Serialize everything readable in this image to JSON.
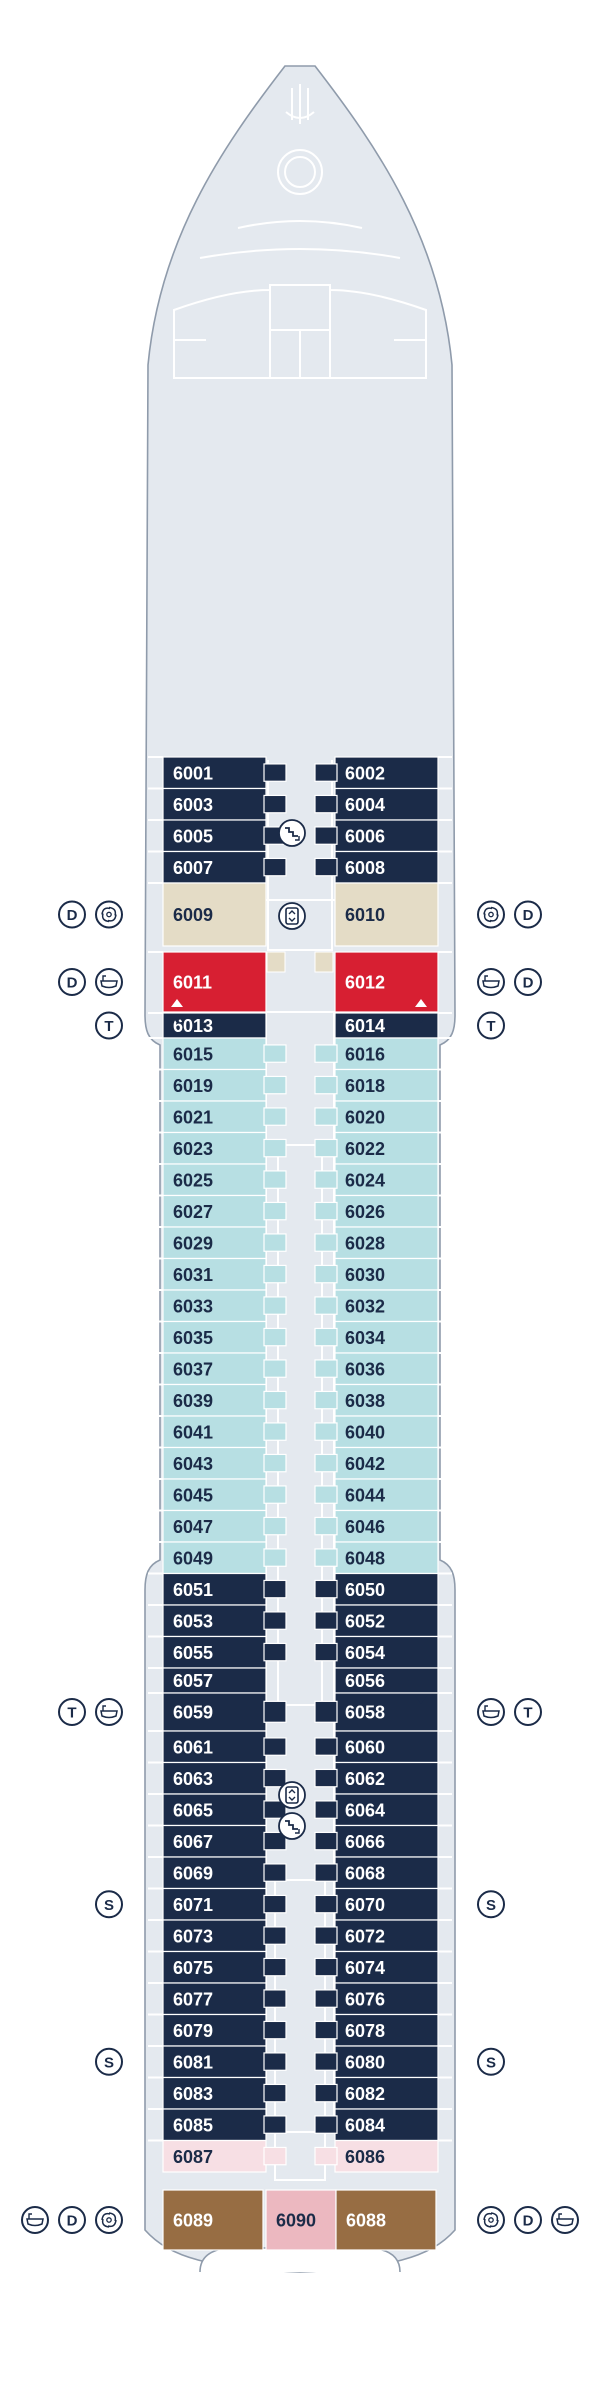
{
  "deck": {
    "name": "",
    "colors": {
      "hull": "#e4e9ef",
      "outline": "#8f9bab",
      "navy": "#1b2b48",
      "light_blue": "#b7dfe3",
      "beige": "#e4dcc6",
      "red": "#d71f32",
      "pink": "#f7dfe4",
      "brown": "#976d43",
      "rose": "#ecb8c0",
      "inner_lines": "#ffffff"
    }
  },
  "cabins": [
    {
      "id": "6001",
      "label": "6001",
      "category": "navy"
    },
    {
      "id": "6002",
      "label": "6002",
      "category": "navy"
    },
    {
      "id": "6003",
      "label": "6003",
      "category": "navy"
    },
    {
      "id": "6004",
      "label": "6004",
      "category": "navy"
    },
    {
      "id": "6005",
      "label": "6005",
      "category": "navy"
    },
    {
      "id": "6006",
      "label": "6006",
      "category": "navy"
    },
    {
      "id": "6007",
      "label": "6007",
      "category": "navy"
    },
    {
      "id": "6008",
      "label": "6008",
      "category": "navy"
    },
    {
      "id": "6009",
      "label": "6009",
      "category": "beige"
    },
    {
      "id": "6010",
      "label": "6010",
      "category": "beige"
    },
    {
      "id": "6011",
      "label": "6011",
      "category": "red"
    },
    {
      "id": "6012",
      "label": "6012",
      "category": "red"
    },
    {
      "id": "6013",
      "label": "6013",
      "category": "navy"
    },
    {
      "id": "6014",
      "label": "6014",
      "category": "navy"
    },
    {
      "id": "6015",
      "label": "6015",
      "category": "light_blue"
    },
    {
      "id": "6016",
      "label": "6016",
      "category": "light_blue"
    },
    {
      "id": "6019",
      "label": "6019",
      "category": "light_blue"
    },
    {
      "id": "6018",
      "label": "6018",
      "category": "light_blue"
    },
    {
      "id": "6021",
      "label": "6021",
      "category": "light_blue"
    },
    {
      "id": "6020",
      "label": "6020",
      "category": "light_blue"
    },
    {
      "id": "6023",
      "label": "6023",
      "category": "light_blue"
    },
    {
      "id": "6022",
      "label": "6022",
      "category": "light_blue"
    },
    {
      "id": "6025",
      "label": "6025",
      "category": "light_blue"
    },
    {
      "id": "6024",
      "label": "6024",
      "category": "light_blue"
    },
    {
      "id": "6027",
      "label": "6027",
      "category": "light_blue"
    },
    {
      "id": "6026",
      "label": "6026",
      "category": "light_blue"
    },
    {
      "id": "6029",
      "label": "6029",
      "category": "light_blue"
    },
    {
      "id": "6028",
      "label": "6028",
      "category": "light_blue"
    },
    {
      "id": "6031",
      "label": "6031",
      "category": "light_blue"
    },
    {
      "id": "6030",
      "label": "6030",
      "category": "light_blue"
    },
    {
      "id": "6033",
      "label": "6033",
      "category": "light_blue"
    },
    {
      "id": "6032",
      "label": "6032",
      "category": "light_blue"
    },
    {
      "id": "6035",
      "label": "6035",
      "category": "light_blue"
    },
    {
      "id": "6034",
      "label": "6034",
      "category": "light_blue"
    },
    {
      "id": "6037",
      "label": "6037",
      "category": "light_blue"
    },
    {
      "id": "6036",
      "label": "6036",
      "category": "light_blue"
    },
    {
      "id": "6039",
      "label": "6039",
      "category": "light_blue"
    },
    {
      "id": "6038",
      "label": "6038",
      "category": "light_blue"
    },
    {
      "id": "6041",
      "label": "6041",
      "category": "light_blue"
    },
    {
      "id": "6040",
      "label": "6040",
      "category": "light_blue"
    },
    {
      "id": "6043",
      "label": "6043",
      "category": "light_blue"
    },
    {
      "id": "6042",
      "label": "6042",
      "category": "light_blue"
    },
    {
      "id": "6045",
      "label": "6045",
      "category": "light_blue"
    },
    {
      "id": "6044",
      "label": "6044",
      "category": "light_blue"
    },
    {
      "id": "6047",
      "label": "6047",
      "category": "light_blue"
    },
    {
      "id": "6046",
      "label": "6046",
      "category": "light_blue"
    },
    {
      "id": "6049",
      "label": "6049",
      "category": "light_blue"
    },
    {
      "id": "6048",
      "label": "6048",
      "category": "light_blue"
    },
    {
      "id": "6051",
      "label": "6051",
      "category": "navy"
    },
    {
      "id": "6050",
      "label": "6050",
      "category": "navy"
    },
    {
      "id": "6053",
      "label": "6053",
      "category": "navy"
    },
    {
      "id": "6052",
      "label": "6052",
      "category": "navy"
    },
    {
      "id": "6055",
      "label": "6055",
      "category": "navy"
    },
    {
      "id": "6054",
      "label": "6054",
      "category": "navy"
    },
    {
      "id": "6057",
      "label": "6057",
      "category": "navy"
    },
    {
      "id": "6056",
      "label": "6056",
      "category": "navy"
    },
    {
      "id": "6059",
      "label": "6059",
      "category": "navy"
    },
    {
      "id": "6058",
      "label": "6058",
      "category": "navy"
    },
    {
      "id": "6061",
      "label": "6061",
      "category": "navy"
    },
    {
      "id": "6060",
      "label": "6060",
      "category": "navy"
    },
    {
      "id": "6063",
      "label": "6063",
      "category": "navy"
    },
    {
      "id": "6062",
      "label": "6062",
      "category": "navy"
    },
    {
      "id": "6065",
      "label": "6065",
      "category": "navy"
    },
    {
      "id": "6064",
      "label": "6064",
      "category": "navy"
    },
    {
      "id": "6067",
      "label": "6067",
      "category": "navy"
    },
    {
      "id": "6066",
      "label": "6066",
      "category": "navy"
    },
    {
      "id": "6069",
      "label": "6069",
      "category": "navy"
    },
    {
      "id": "6068",
      "label": "6068",
      "category": "navy"
    },
    {
      "id": "6071",
      "label": "6071",
      "category": "navy"
    },
    {
      "id": "6070",
      "label": "6070",
      "category": "navy"
    },
    {
      "id": "6073",
      "label": "6073",
      "category": "navy"
    },
    {
      "id": "6072",
      "label": "6072",
      "category": "navy"
    },
    {
      "id": "6075",
      "label": "6075",
      "category": "navy"
    },
    {
      "id": "6074",
      "label": "6074",
      "category": "navy"
    },
    {
      "id": "6077",
      "label": "6077",
      "category": "navy"
    },
    {
      "id": "6076",
      "label": "6076",
      "category": "navy"
    },
    {
      "id": "6079",
      "label": "6079",
      "category": "navy"
    },
    {
      "id": "6078",
      "label": "6078",
      "category": "navy"
    },
    {
      "id": "6081",
      "label": "6081",
      "category": "navy"
    },
    {
      "id": "6080",
      "label": "6080",
      "category": "navy"
    },
    {
      "id": "6083",
      "label": "6083",
      "category": "navy"
    },
    {
      "id": "6082",
      "label": "6082",
      "category": "navy"
    },
    {
      "id": "6085",
      "label": "6085",
      "category": "navy"
    },
    {
      "id": "6084",
      "label": "6084",
      "category": "navy"
    },
    {
      "id": "6087",
      "label": "6087",
      "category": "pink"
    },
    {
      "id": "6086",
      "label": "6086",
      "category": "pink"
    },
    {
      "id": "6089",
      "label": "6089",
      "category": "brown"
    },
    {
      "id": "6090",
      "label": "6090",
      "category": "rose"
    },
    {
      "id": "6088",
      "label": "6088",
      "category": "brown"
    }
  ],
  "symbols": [
    {
      "cabin": "6009",
      "side": "left",
      "icons": [
        "D",
        "swirl"
      ]
    },
    {
      "cabin": "6010",
      "side": "right",
      "icons": [
        "swirl",
        "D"
      ]
    },
    {
      "cabin": "6011",
      "side": "left",
      "icons": [
        "D",
        "bath"
      ]
    },
    {
      "cabin": "6012",
      "side": "right",
      "icons": [
        "bath",
        "D"
      ]
    },
    {
      "cabin": "6013",
      "side": "left",
      "icons": [
        "T"
      ]
    },
    {
      "cabin": "6014",
      "side": "right",
      "icons": [
        "T"
      ]
    },
    {
      "cabin": "6059",
      "side": "left",
      "icons": [
        "T",
        "bath"
      ]
    },
    {
      "cabin": "6058",
      "side": "right",
      "icons": [
        "bath",
        "T"
      ]
    },
    {
      "cabin": "6071",
      "side": "left",
      "icons": [
        "S"
      ]
    },
    {
      "cabin": "6070",
      "side": "right",
      "icons": [
        "S"
      ]
    },
    {
      "cabin": "6081",
      "side": "left",
      "icons": [
        "S"
      ]
    },
    {
      "cabin": "6080",
      "side": "right",
      "icons": [
        "S"
      ]
    },
    {
      "cabin": "6089",
      "side": "left",
      "icons": [
        "bath",
        "D",
        "swirl"
      ]
    },
    {
      "cabin": "6088",
      "side": "right",
      "icons": [
        "swirl",
        "D",
        "bath"
      ]
    }
  ],
  "facilities": [
    {
      "name": "stairs-forward-icon",
      "icon": "stairs"
    },
    {
      "name": "elevator-forward-icon",
      "icon": "elevator"
    },
    {
      "name": "elevator-aft-icon",
      "icon": "elevator"
    },
    {
      "name": "stairs-aft-icon",
      "icon": "stairs"
    }
  ]
}
